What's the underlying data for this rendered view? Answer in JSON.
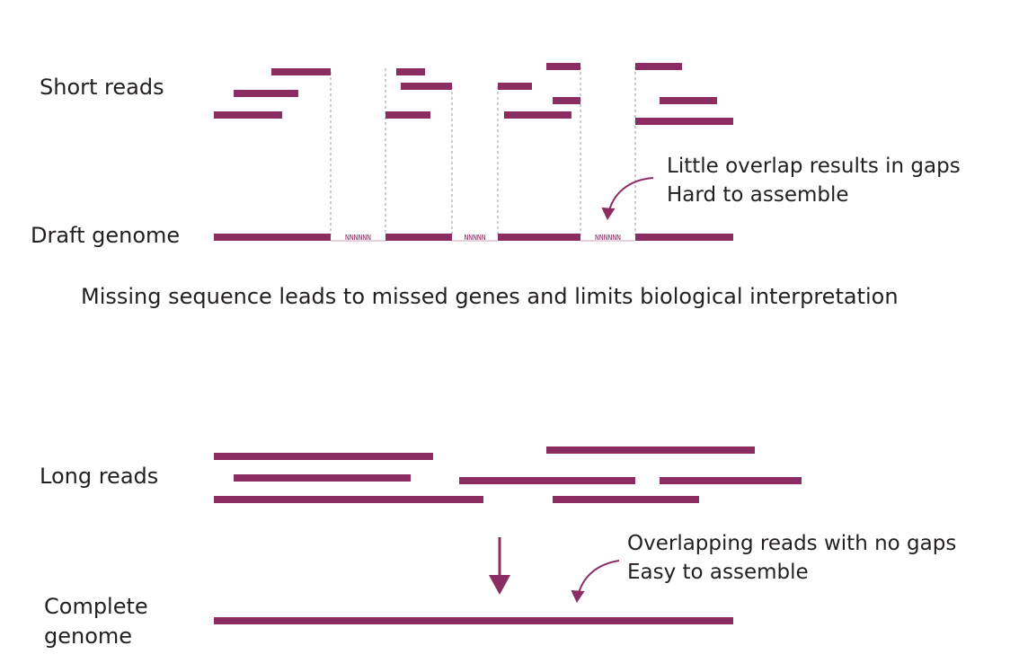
{
  "colors": {
    "read": "#8b2c63",
    "text": "#231f20",
    "guide": "#a7a9ac",
    "gap_text": "#8b2c63"
  },
  "short_section": {
    "reads_label": "Short reads",
    "genome_label": "Draft genome",
    "gap_marker": "NNNNNN",
    "gap_marker_short": "NNNNN",
    "annotation_line1": "Little overlap results in gaps",
    "annotation_line2": "Hard to assemble",
    "caption": "Missing sequence leads to missed genes and limits biological interpretation"
  },
  "long_section": {
    "reads_label": "Long reads",
    "genome_label_line1": "Complete",
    "genome_label_line2": "genome",
    "annotation_line1": "Overlapping reads with no gaps",
    "annotation_line2": "Easy to assemble"
  },
  "icons": {
    "annotation_arrow": "curved-arrow-icon",
    "assembly_arrow": "down-arrow-icon"
  }
}
